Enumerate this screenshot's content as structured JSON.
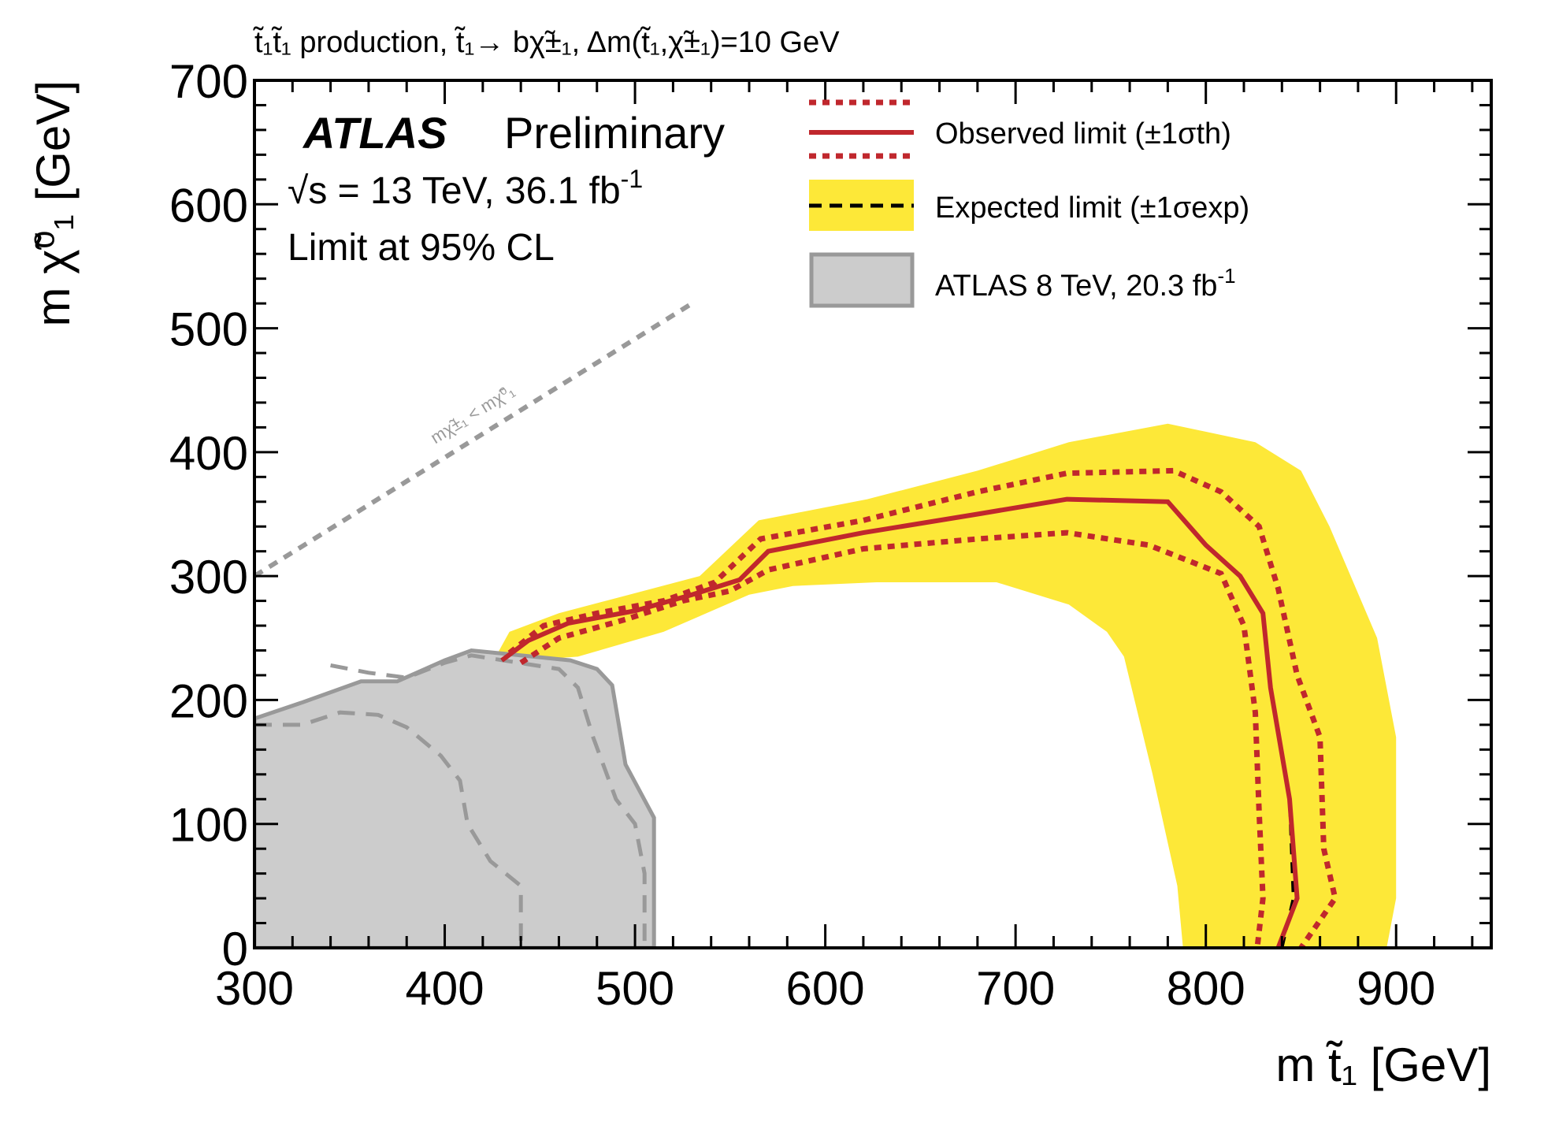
{
  "chart_data": {
    "type": "contour-exclusion",
    "title": "t̃₁t̃₁ production, t̃₁→ bχ̃±₁, Δm(t̃₁,χ̃±₁)=10 GeV",
    "xlabel": "m t̃₁ [GeV]",
    "ylabel": "m χ̃⁰₁ [GeV]",
    "xlim": [
      300,
      950
    ],
    "ylim": [
      0,
      700
    ],
    "xticks": [
      300,
      400,
      500,
      600,
      700,
      800,
      900
    ],
    "yticks": [
      0,
      100,
      200,
      300,
      400,
      500,
      600,
      700
    ],
    "atlas_label": "ATLAS",
    "atlas_sublabel": "Preliminary",
    "energy_label": "√s = 13 TeV, 36.1 fb",
    "energy_exp": "-1",
    "cl_label": "Limit at 95% CL",
    "diagonal_label": "mχ̃±₁ < mχ̃⁰₁",
    "legend": {
      "observed": "Observed limit (±1σth)",
      "expected": "Expected limit (±1σexp)",
      "atlas8": "ATLAS 8 TeV, 20.3 fb",
      "atlas8_exp": "-1"
    },
    "colors": {
      "observed": "#c0272d",
      "expected_band": "#fde838",
      "atlas8_fill": "#cccccc",
      "atlas8_line": "#999999",
      "diagonal": "#999999"
    },
    "series": [
      {
        "name": "Expected band (±1σexp)",
        "points": [
          [
            425,
            230
          ],
          [
            434,
            255
          ],
          [
            460,
            270
          ],
          [
            497,
            285
          ],
          [
            534,
            300
          ],
          [
            565,
            345
          ],
          [
            622,
            362
          ],
          [
            680,
            385
          ],
          [
            728,
            408
          ],
          [
            780,
            423
          ],
          [
            826,
            408
          ],
          [
            850,
            385
          ],
          [
            865,
            340
          ],
          [
            890,
            250
          ],
          [
            900,
            170
          ],
          [
            900,
            40
          ],
          [
            895,
            0
          ],
          [
            788,
            0
          ],
          [
            785,
            50
          ],
          [
            772,
            140
          ],
          [
            757,
            235
          ],
          [
            748,
            255
          ],
          [
            728,
            277
          ],
          [
            690,
            295
          ],
          [
            627,
            295
          ],
          [
            583,
            292
          ],
          [
            560,
            285
          ],
          [
            515,
            255
          ],
          [
            470,
            235
          ]
        ]
      },
      {
        "name": "Observed limit",
        "points": [
          [
            430,
            232
          ],
          [
            444,
            248
          ],
          [
            465,
            262
          ],
          [
            500,
            272
          ],
          [
            530,
            285
          ],
          [
            555,
            297
          ],
          [
            570,
            320
          ],
          [
            620,
            335
          ],
          [
            680,
            350
          ],
          [
            727,
            362
          ],
          [
            780,
            360
          ],
          [
            800,
            325
          ],
          [
            818,
            300
          ],
          [
            830,
            270
          ],
          [
            834,
            210
          ],
          [
            844,
            120
          ],
          [
            848,
            40
          ],
          [
            838,
            0
          ]
        ]
      },
      {
        "name": "Observed +1σth",
        "points": [
          [
            434,
            238
          ],
          [
            452,
            260
          ],
          [
            480,
            270
          ],
          [
            515,
            280
          ],
          [
            542,
            295
          ],
          [
            566,
            330
          ],
          [
            620,
            345
          ],
          [
            680,
            368
          ],
          [
            727,
            383
          ],
          [
            783,
            385
          ],
          [
            808,
            368
          ],
          [
            828,
            340
          ],
          [
            838,
            290
          ],
          [
            848,
            220
          ],
          [
            860,
            170
          ],
          [
            862,
            80
          ],
          [
            868,
            40
          ],
          [
            850,
            0
          ]
        ]
      },
      {
        "name": "Observed -1σth",
        "points": [
          [
            440,
            230
          ],
          [
            460,
            250
          ],
          [
            495,
            265
          ],
          [
            525,
            280
          ],
          [
            550,
            288
          ],
          [
            570,
            305
          ],
          [
            620,
            322
          ],
          [
            680,
            330
          ],
          [
            727,
            335
          ],
          [
            770,
            325
          ],
          [
            808,
            302
          ],
          [
            820,
            260
          ],
          [
            826,
            190
          ],
          [
            828,
            110
          ],
          [
            830,
            40
          ],
          [
            827,
            0
          ]
        ]
      },
      {
        "name": "Expected limit",
        "points": [
          [
            430,
            232
          ],
          [
            444,
            248
          ],
          [
            465,
            262
          ],
          [
            500,
            272
          ],
          [
            530,
            285
          ],
          [
            555,
            297
          ],
          [
            570,
            320
          ],
          [
            620,
            335
          ],
          [
            680,
            350
          ],
          [
            727,
            362
          ],
          [
            780,
            360
          ],
          [
            800,
            325
          ],
          [
            818,
            300
          ],
          [
            830,
            270
          ],
          [
            834,
            210
          ],
          [
            844,
            120
          ],
          [
            846,
            40
          ],
          [
            840,
            0
          ]
        ]
      },
      {
        "name": "ATLAS 8 TeV",
        "points": [
          [
            300,
            0
          ],
          [
            300,
            185
          ],
          [
            325,
            198
          ],
          [
            356,
            215
          ],
          [
            375,
            215
          ],
          [
            400,
            232
          ],
          [
            414,
            240
          ],
          [
            466,
            232
          ],
          [
            480,
            225
          ],
          [
            488,
            212
          ],
          [
            495,
            148
          ],
          [
            510,
            105
          ],
          [
            510,
            0
          ]
        ]
      },
      {
        "name": "ATLAS 8 TeV expected",
        "points": [
          [
            300,
            180
          ],
          [
            325,
            180
          ],
          [
            345,
            190
          ],
          [
            365,
            188
          ],
          [
            380,
            178
          ],
          [
            398,
            155
          ],
          [
            408,
            135
          ],
          [
            412,
            100
          ],
          [
            424,
            70
          ],
          [
            440,
            50
          ],
          [
            440,
            0
          ]
        ]
      },
      {
        "name": "ATLAS 8 TeV expected (outer)",
        "points": [
          [
            340,
            228
          ],
          [
            360,
            222
          ],
          [
            380,
            218
          ],
          [
            400,
            230
          ],
          [
            414,
            236
          ],
          [
            460,
            225
          ],
          [
            470,
            210
          ],
          [
            478,
            170
          ],
          [
            490,
            120
          ],
          [
            500,
            100
          ],
          [
            505,
            60
          ],
          [
            505,
            0
          ]
        ]
      },
      {
        "name": "Diagonal",
        "points": [
          [
            300,
            300
          ],
          [
            530,
            520
          ]
        ]
      }
    ]
  }
}
